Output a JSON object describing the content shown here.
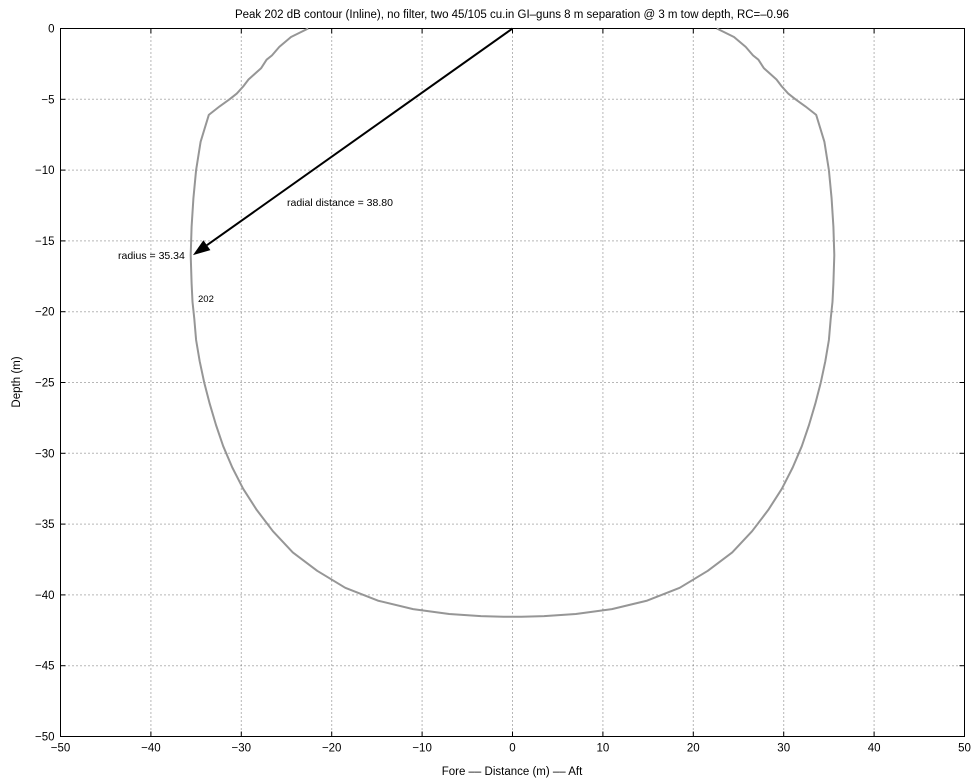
{
  "chart_data": {
    "type": "line",
    "title": "Peak 202 dB contour (Inline), no filter, two 45/105 cu.in GI–guns 8 m separation @ 3 m tow depth, RC=–0.96",
    "xlabel": "Fore –– Distance (m) –– Aft",
    "ylabel": "Depth (m)",
    "xlim": [
      -50,
      50
    ],
    "ylim": [
      -50,
      0
    ],
    "xticks": [
      -50,
      -40,
      -30,
      -20,
      -10,
      0,
      10,
      20,
      30,
      40,
      50
    ],
    "yticks": [
      0,
      -5,
      -10,
      -15,
      -20,
      -25,
      -30,
      -35,
      -40,
      -45,
      -50
    ],
    "xtick_labels": [
      "−50",
      "−40",
      "−30",
      "−20",
      "−10",
      "0",
      "10",
      "20",
      "30",
      "40",
      "50"
    ],
    "ytick_labels": [
      "0",
      "−5",
      "−10",
      "−15",
      "−20",
      "−25",
      "−30",
      "−35",
      "−40",
      "−45",
      "−50"
    ],
    "grid": true,
    "line_color": "#969696",
    "series": [
      {
        "x": [
          -22.6,
          -24.5,
          -25.8,
          -26.6,
          -27.2,
          -27.8,
          -28.5,
          -29.2,
          -29.8,
          -30.5,
          -31.3,
          -32.4,
          -33.6,
          -34.5,
          -35.0,
          -35.3,
          -35.5,
          -35.6,
          -35.5,
          -35.4,
          -35.2,
          -35.0,
          -34.6,
          -34.1,
          -33.5,
          -32.8,
          -32.0,
          -31.0,
          -29.8,
          -28.3,
          -26.5,
          -24.3,
          -21.6,
          -18.5,
          -14.9,
          -11.0,
          -7.0,
          -3.5,
          -1.0,
          0.0,
          1.0,
          3.5,
          7.0,
          11.0,
          14.9,
          18.5,
          21.6,
          24.3,
          26.5,
          28.3,
          29.8,
          31.0,
          32.0,
          32.8,
          33.5,
          34.1,
          34.6,
          35.0,
          35.2,
          35.4,
          35.5,
          35.6,
          35.5,
          35.3,
          35.0,
          34.5,
          33.6,
          32.4,
          31.3,
          30.5,
          29.8,
          29.2,
          28.5,
          27.8,
          27.2,
          26.6,
          25.8,
          24.5,
          22.6
        ],
        "y": [
          0,
          -0.6,
          -1.3,
          -1.9,
          -2.2,
          -2.8,
          -3.2,
          -3.6,
          -4.1,
          -4.6,
          -5.0,
          -5.5,
          -6.1,
          -8.0,
          -10.0,
          -12.0,
          -14.0,
          -16.0,
          -18.0,
          -19.3,
          -20.5,
          -22.0,
          -23.5,
          -25.0,
          -26.5,
          -28.0,
          -29.5,
          -31.0,
          -32.5,
          -34.0,
          -35.5,
          -37.0,
          -38.3,
          -39.5,
          -40.4,
          -41.0,
          -41.35,
          -41.5,
          -41.55,
          -41.55,
          -41.55,
          -41.5,
          -41.35,
          -41.0,
          -40.4,
          -39.5,
          -38.3,
          -37.0,
          -35.5,
          -34.0,
          -32.5,
          -31.0,
          -29.5,
          -28.0,
          -26.5,
          -25.0,
          -23.5,
          -22.0,
          -20.5,
          -19.3,
          -18.0,
          -16.0,
          -14.0,
          -12.0,
          -10.0,
          -8.0,
          -6.1,
          -5.5,
          -5.0,
          -4.6,
          -4.1,
          -3.6,
          -3.2,
          -2.8,
          -2.2,
          -1.9,
          -1.3,
          -0.6,
          0
        ]
      }
    ],
    "annotations": {
      "radial_label": "radial distance = 38.80",
      "radius_label": "radius = 35.34",
      "contour_label": "202",
      "arrow_from": [
        0,
        0
      ],
      "arrow_to": [
        -35.34,
        -16.0
      ]
    }
  }
}
